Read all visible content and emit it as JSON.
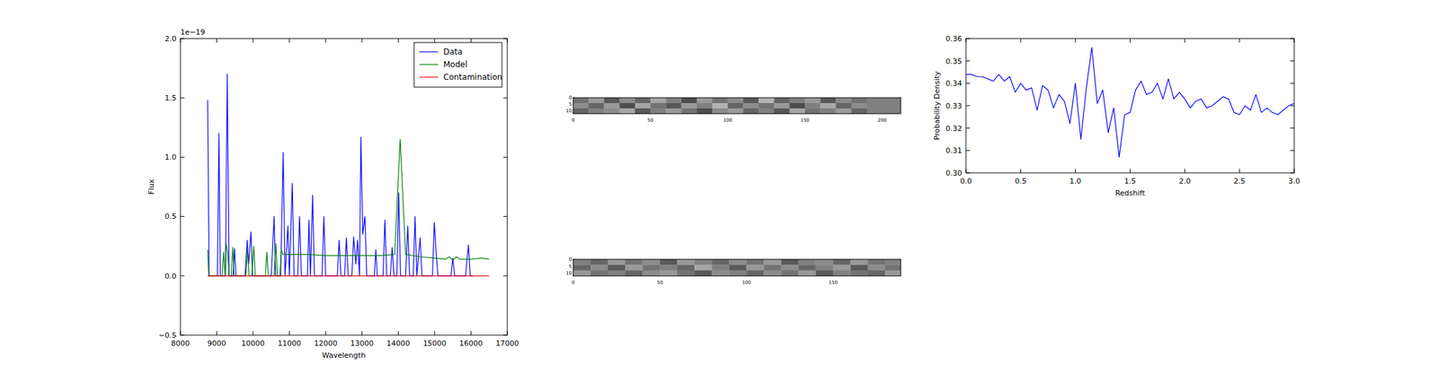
{
  "chart_data": [
    {
      "type": "line",
      "x_label": "Wavelength",
      "y_label": "Flux",
      "y_offset_label": "1e−19",
      "xlim": [
        8000,
        17000
      ],
      "xticks": [
        8000,
        9000,
        10000,
        11000,
        12000,
        13000,
        14000,
        15000,
        16000,
        17000
      ],
      "ylim": [
        -0.5,
        2.0
      ],
      "yticks": [
        {
          "value": -0.5,
          "label": "−0.5"
        },
        {
          "value": 0,
          "label": "0.0"
        },
        {
          "value": 0.5,
          "label": "0.5"
        },
        {
          "value": 1.0,
          "label": "1.0"
        },
        {
          "value": 1.5,
          "label": "1.5"
        },
        {
          "value": 2.0,
          "label": "2.0"
        }
      ],
      "legend": "upper right",
      "series": [
        {
          "name": "Data",
          "color": "#0000ff",
          "x": [
            8750,
            8790,
            9020,
            9060,
            9100,
            9240,
            9290,
            9340,
            9450,
            9490,
            9530,
            9780,
            9840,
            9880,
            9940,
            9990,
            10500,
            10580,
            10620,
            10760,
            10830,
            10880,
            10960,
            11000,
            11080,
            11130,
            11230,
            11280,
            11330,
            11500,
            11540,
            11580,
            11640,
            11690,
            11900,
            11950,
            12000,
            12320,
            12370,
            12420,
            12520,
            12570,
            12620,
            12720,
            12770,
            12830,
            12880,
            12930,
            12970,
            13020,
            13080,
            13130,
            13340,
            13380,
            13420,
            13580,
            13630,
            13680,
            13780,
            13830,
            13880,
            13960,
            14010,
            14060,
            14200,
            14260,
            14310,
            14410,
            14460,
            14510,
            14600,
            14650,
            14940,
            14990,
            15040,
            15090,
            15450,
            15500,
            15550,
            15850,
            15930,
            15980,
            16050
          ],
          "values": [
            1.48,
            0,
            0,
            1.2,
            0,
            0,
            1.7,
            0,
            0,
            0.23,
            0,
            0,
            0.3,
            0.1,
            0.37,
            0,
            0,
            0.5,
            0,
            0,
            1.04,
            0,
            0.42,
            0,
            0.78,
            0,
            0,
            0.5,
            0,
            0,
            0.47,
            0,
            0.68,
            0,
            0,
            0.5,
            0,
            0,
            0.3,
            0,
            0,
            0.32,
            0,
            0,
            0.33,
            0.1,
            0.3,
            0,
            1.17,
            0.35,
            0.5,
            0,
            0,
            0.22,
            0,
            0,
            0.47,
            0,
            0,
            0.24,
            0,
            0,
            0.7,
            0,
            0,
            0.42,
            0,
            0,
            0.5,
            0,
            0.32,
            0,
            0,
            0.45,
            0.2,
            0,
            0,
            0.15,
            0,
            0,
            0.26,
            0,
            0
          ]
        },
        {
          "name": "Model",
          "color": "#008000",
          "x": [
            8750,
            8780,
            9150,
            9190,
            9230,
            9260,
            9300,
            9340,
            9400,
            9440,
            9480,
            9800,
            9850,
            9890,
            9970,
            10020,
            10060,
            10340,
            10380,
            10420,
            10580,
            10630,
            10670,
            10740,
            10780,
            10820,
            11000,
            11500,
            12000,
            12500,
            13000,
            13500,
            13900,
            14050,
            14200,
            14600,
            15000,
            15300,
            15400,
            15500,
            15600,
            15700,
            16000,
            16300,
            16500
          ],
          "values": [
            0.22,
            0,
            0,
            0.2,
            0,
            0.27,
            0.2,
            0,
            0,
            0.24,
            0,
            0,
            0.22,
            0,
            0,
            0.25,
            0,
            0,
            0.2,
            0,
            0,
            0.27,
            0,
            0,
            0.22,
            0.18,
            0.18,
            0.18,
            0.17,
            0.17,
            0.17,
            0.17,
            0.18,
            1.15,
            0.18,
            0.16,
            0.15,
            0.14,
            0.16,
            0.13,
            0.16,
            0.14,
            0.14,
            0.15,
            0.14
          ]
        },
        {
          "name": "Contamination",
          "color": "#ff0000",
          "x": [
            8750,
            16500
          ],
          "values": [
            0,
            0
          ]
        }
      ]
    },
    {
      "type": "heatmap",
      "xlim": [
        0,
        212
      ],
      "xticks": [
        0,
        50,
        100,
        150,
        200
      ],
      "ylim": [
        0,
        12
      ],
      "yticks": [
        0,
        5,
        10
      ],
      "x_edges": [
        0,
        10,
        20,
        30,
        40,
        50,
        60,
        70,
        80,
        90,
        100,
        110,
        120,
        130,
        140,
        150,
        160,
        170,
        180,
        190,
        212
      ],
      "y_edges": [
        0,
        4,
        8,
        12
      ],
      "values": [
        [
          0.45,
          0.6,
          0.35,
          0.55,
          0.4,
          0.65,
          0.5,
          0.3,
          0.6,
          0.45,
          0.55,
          0.35,
          0.7,
          0.4,
          0.5,
          0.6,
          0.35,
          0.55,
          0.45,
          0.5
        ],
        [
          0.55,
          0.4,
          0.6,
          0.3,
          0.65,
          0.45,
          0.35,
          0.6,
          0.5,
          0.7,
          0.4,
          0.55,
          0.45,
          0.6,
          0.3,
          0.5,
          0.65,
          0.4,
          0.55,
          0.5
        ],
        [
          0.4,
          0.5,
          0.55,
          0.65,
          0.35,
          0.5,
          0.6,
          0.45,
          0.3,
          0.55,
          0.6,
          0.4,
          0.5,
          0.35,
          0.65,
          0.45,
          0.5,
          0.6,
          0.4,
          0.5
        ]
      ]
    },
    {
      "type": "heatmap",
      "xlim": [
        0,
        189
      ],
      "xticks": [
        0,
        50,
        100,
        150
      ],
      "ylim": [
        0,
        12
      ],
      "yticks": [
        0,
        5,
        10
      ],
      "x_edges": [
        0,
        10,
        20,
        30,
        40,
        50,
        60,
        70,
        80,
        90,
        100,
        110,
        120,
        130,
        140,
        150,
        160,
        170,
        180,
        189
      ],
      "y_edges": [
        0,
        4,
        8,
        12
      ],
      "values": [
        [
          0.5,
          0.4,
          0.6,
          0.45,
          0.55,
          0.35,
          0.6,
          0.5,
          0.4,
          0.55,
          0.45,
          0.6,
          0.35,
          0.5,
          0.55,
          0.4,
          0.6,
          0.45,
          0.5
        ],
        [
          0.4,
          0.55,
          0.35,
          0.6,
          0.45,
          0.5,
          0.4,
          0.65,
          0.5,
          0.35,
          0.6,
          0.45,
          0.55,
          0.4,
          0.5,
          0.6,
          0.35,
          0.55,
          0.45
        ],
        [
          0.6,
          0.45,
          0.5,
          0.4,
          0.55,
          0.6,
          0.45,
          0.35,
          0.55,
          0.5,
          0.4,
          0.55,
          0.45,
          0.6,
          0.35,
          0.5,
          0.45,
          0.4,
          0.6
        ]
      ]
    },
    {
      "type": "line",
      "x_label": "Redshift",
      "y_label": "Probability Density",
      "color": "#0000ff",
      "xlim": [
        0,
        3
      ],
      "xticks": [
        {
          "value": 0,
          "label": "0.0"
        },
        {
          "value": 0.5,
          "label": "0.5"
        },
        {
          "value": 1.0,
          "label": "1.0"
        },
        {
          "value": 1.5,
          "label": "1.5"
        },
        {
          "value": 2.0,
          "label": "2.0"
        },
        {
          "value": 2.5,
          "label": "2.5"
        },
        {
          "value": 3.0,
          "label": "3.0"
        }
      ],
      "ylim": [
        0.3,
        0.36
      ],
      "yticks": [
        {
          "value": 0.3,
          "label": "0.30"
        },
        {
          "value": 0.31,
          "label": "0.31"
        },
        {
          "value": 0.32,
          "label": "0.32"
        },
        {
          "value": 0.33,
          "label": "0.33"
        },
        {
          "value": 0.34,
          "label": "0.34"
        },
        {
          "value": 0.35,
          "label": "0.35"
        },
        {
          "value": 0.36,
          "label": "0.36"
        }
      ],
      "x": [
        0,
        0.05,
        0.1,
        0.15,
        0.2,
        0.25,
        0.3,
        0.35,
        0.4,
        0.45,
        0.5,
        0.55,
        0.6,
        0.65,
        0.7,
        0.75,
        0.8,
        0.85,
        0.9,
        0.95,
        1.0,
        1.05,
        1.1,
        1.15,
        1.2,
        1.25,
        1.3,
        1.35,
        1.4,
        1.45,
        1.5,
        1.55,
        1.6,
        1.65,
        1.7,
        1.75,
        1.8,
        1.85,
        1.9,
        1.95,
        2.0,
        2.05,
        2.1,
        2.15,
        2.2,
        2.25,
        2.3,
        2.35,
        2.4,
        2.45,
        2.5,
        2.55,
        2.6,
        2.65,
        2.7,
        2.75,
        2.8,
        2.85,
        2.9,
        2.95,
        3.0
      ],
      "values": [
        0.344,
        0.344,
        0.343,
        0.343,
        0.342,
        0.341,
        0.344,
        0.341,
        0.343,
        0.336,
        0.34,
        0.337,
        0.338,
        0.328,
        0.339,
        0.337,
        0.329,
        0.335,
        0.332,
        0.322,
        0.34,
        0.315,
        0.338,
        0.356,
        0.331,
        0.337,
        0.318,
        0.329,
        0.307,
        0.326,
        0.327,
        0.337,
        0.341,
        0.335,
        0.336,
        0.34,
        0.333,
        0.342,
        0.333,
        0.336,
        0.333,
        0.329,
        0.332,
        0.333,
        0.329,
        0.33,
        0.332,
        0.334,
        0.333,
        0.327,
        0.326,
        0.33,
        0.328,
        0.335,
        0.327,
        0.329,
        0.327,
        0.326,
        0.328,
        0.33,
        0.331
      ]
    }
  ]
}
